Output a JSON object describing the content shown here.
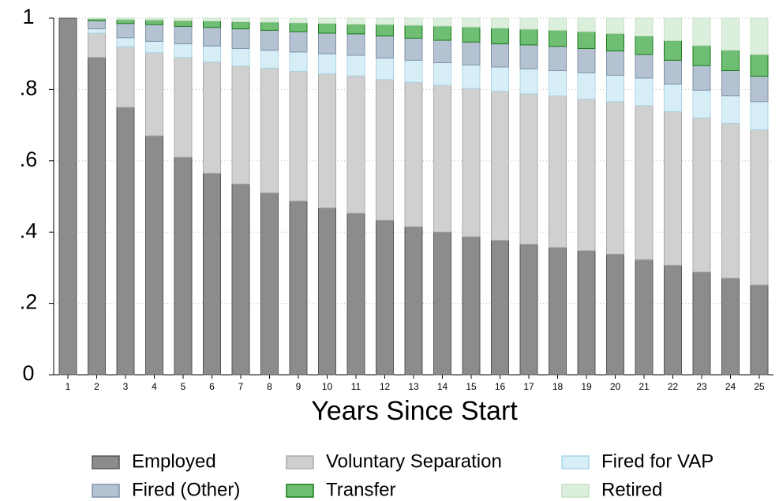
{
  "chart_data": {
    "type": "stacked_bar",
    "x_label": "Years Since Start",
    "categories": [
      "1",
      "2",
      "3",
      "4",
      "5",
      "6",
      "7",
      "8",
      "9",
      "10",
      "11",
      "12",
      "13",
      "14",
      "15",
      "16",
      "17",
      "18",
      "19",
      "20",
      "21",
      "22",
      "23",
      "24",
      "25"
    ],
    "ylim": [
      0,
      1
    ],
    "yticks": [
      0,
      {
        "value": 0.2,
        "label": ".2"
      },
      {
        "value": 0.4,
        "label": ".4"
      },
      {
        "value": 0.6,
        "label": ".6"
      },
      {
        "value": 0.8,
        "label": ".8"
      },
      1
    ],
    "grid": true,
    "series": [
      {
        "name": "Employed",
        "color": "#8c8c8c",
        "values": [
          1.0,
          0.89,
          0.75,
          0.67,
          0.61,
          0.565,
          0.535,
          0.51,
          0.487,
          0.468,
          0.453,
          0.433,
          0.415,
          0.4,
          0.387,
          0.377,
          0.366,
          0.357,
          0.348,
          0.338,
          0.323,
          0.307,
          0.288,
          0.271,
          0.252
        ]
      },
      {
        "name": "Voluntary Separation",
        "color": "#d0d0d0",
        "values": [
          0,
          0.068,
          0.17,
          0.233,
          0.28,
          0.312,
          0.331,
          0.35,
          0.364,
          0.376,
          0.385,
          0.395,
          0.405,
          0.412,
          0.416,
          0.418,
          0.422,
          0.425,
          0.425,
          0.428,
          0.432,
          0.431,
          0.432,
          0.434,
          0.435
        ]
      },
      {
        "name": "Fired for VAP",
        "color": "#d7eef6",
        "values": [
          0,
          0.012,
          0.025,
          0.032,
          0.038,
          0.045,
          0.049,
          0.05,
          0.054,
          0.056,
          0.058,
          0.06,
          0.062,
          0.063,
          0.066,
          0.068,
          0.07,
          0.071,
          0.074,
          0.074,
          0.077,
          0.077,
          0.078,
          0.077,
          0.079
        ]
      },
      {
        "name": "Fired (Other)",
        "color": "#b4c2d2",
        "values": [
          0,
          0.023,
          0.04,
          0.047,
          0.049,
          0.052,
          0.055,
          0.056,
          0.057,
          0.058,
          0.06,
          0.062,
          0.062,
          0.063,
          0.064,
          0.065,
          0.067,
          0.068,
          0.068,
          0.068,
          0.066,
          0.067,
          0.069,
          0.071,
          0.071
        ]
      },
      {
        "name": "Transfer",
        "color": "#6fbe74",
        "values": [
          0,
          0.005,
          0.011,
          0.013,
          0.016,
          0.018,
          0.02,
          0.023,
          0.025,
          0.027,
          0.027,
          0.032,
          0.036,
          0.04,
          0.042,
          0.044,
          0.044,
          0.045,
          0.047,
          0.049,
          0.052,
          0.055,
          0.056,
          0.057,
          0.061
        ]
      },
      {
        "name": "Retired",
        "color": "#dcefdc",
        "values": [
          0,
          0.002,
          0.004,
          0.005,
          0.007,
          0.008,
          0.01,
          0.011,
          0.013,
          0.015,
          0.017,
          0.018,
          0.02,
          0.022,
          0.025,
          0.028,
          0.031,
          0.034,
          0.038,
          0.043,
          0.05,
          0.063,
          0.077,
          0.09,
          0.102
        ]
      }
    ]
  }
}
